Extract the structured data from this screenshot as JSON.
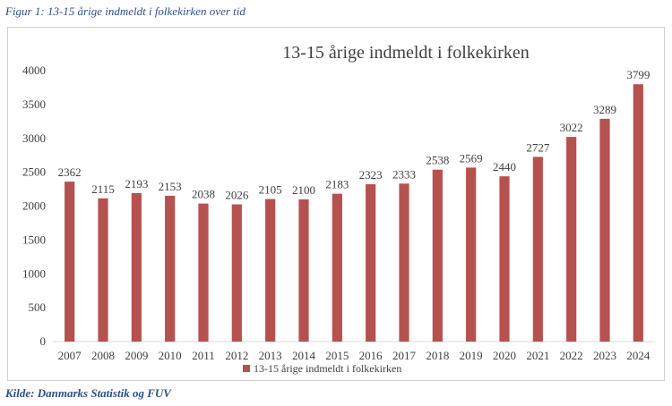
{
  "figure_caption": "Figur 1: 13-15 årige indmeldt i folkekirken over tid",
  "source_note": "Kilde: Danmarks Statistik og FUV",
  "colors": {
    "bar": "#b5524f",
    "axis": "#d9d9d9",
    "text": "#404040",
    "caption": "#2f4f8a"
  },
  "chart_data": {
    "type": "bar",
    "title": "13-15 årige indmeldt i folkekirken",
    "categories": [
      "2007",
      "2008",
      "2009",
      "2010",
      "2011",
      "2012",
      "2013",
      "2014",
      "2015",
      "2016",
      "2017",
      "2018",
      "2019",
      "2020",
      "2021",
      "2022",
      "2023",
      "2024"
    ],
    "series": [
      {
        "name": "13-15 årige indmeldt i folkekirken",
        "values": [
          2362,
          2115,
          2193,
          2153,
          2038,
          2026,
          2105,
          2100,
          2183,
          2323,
          2333,
          2538,
          2569,
          2440,
          2727,
          3022,
          3289,
          3799
        ]
      }
    ],
    "ylim": [
      0,
      4000
    ],
    "yticks": [
      0,
      500,
      1000,
      1500,
      2000,
      2500,
      3000,
      3500,
      4000
    ],
    "grid": false,
    "legend": "bottom"
  }
}
